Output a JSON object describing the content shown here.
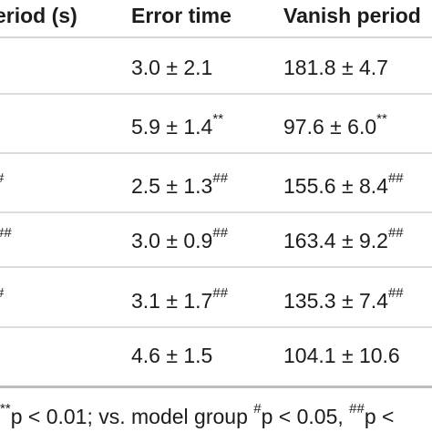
{
  "table": {
    "headers": [
      "eriod (s)",
      "Error time",
      "Vanish period"
    ],
    "rows": [
      {
        "c1": "",
        "c1_sup": "",
        "c2": "3.0 ± 2.1",
        "c2_sup": "",
        "c3": "181.8 ± 4.7",
        "c3_sup": ""
      },
      {
        "c1": "",
        "c1_sup": "",
        "c2": "5.9 ± 1.4",
        "c2_sup": "**",
        "c3": "97.6 ± 6.0",
        "c3_sup": "**"
      },
      {
        "c1": "",
        "c1_sup": "#",
        "c2": "2.5 ± 1.3",
        "c2_sup": "##",
        "c3": "155.6 ± 8.4",
        "c3_sup": "##"
      },
      {
        "c1": "",
        "c1_sup": "##",
        "c2": "3.0 ± 0.9",
        "c2_sup": "##",
        "c3": "163.4 ± 9.2",
        "c3_sup": "##"
      },
      {
        "c1": "",
        "c1_sup": "#",
        "c2": "3.1 ± 1.7",
        "c2_sup": "##",
        "c3": "135.3 ± 7.4",
        "c3_sup": "##"
      },
      {
        "c1": "",
        "c1_sup": "",
        "c2": "4.6 ± 1.5",
        "c2_sup": "",
        "c3": "104.1 ± 10.6",
        "c3_sup": ""
      }
    ]
  },
  "footnote": {
    "sup1": "**",
    "text1": "p < 0.01; vs. model group ",
    "sup2": "#",
    "text2": "p < 0.05, ",
    "sup3": "##",
    "text3": "p <"
  }
}
